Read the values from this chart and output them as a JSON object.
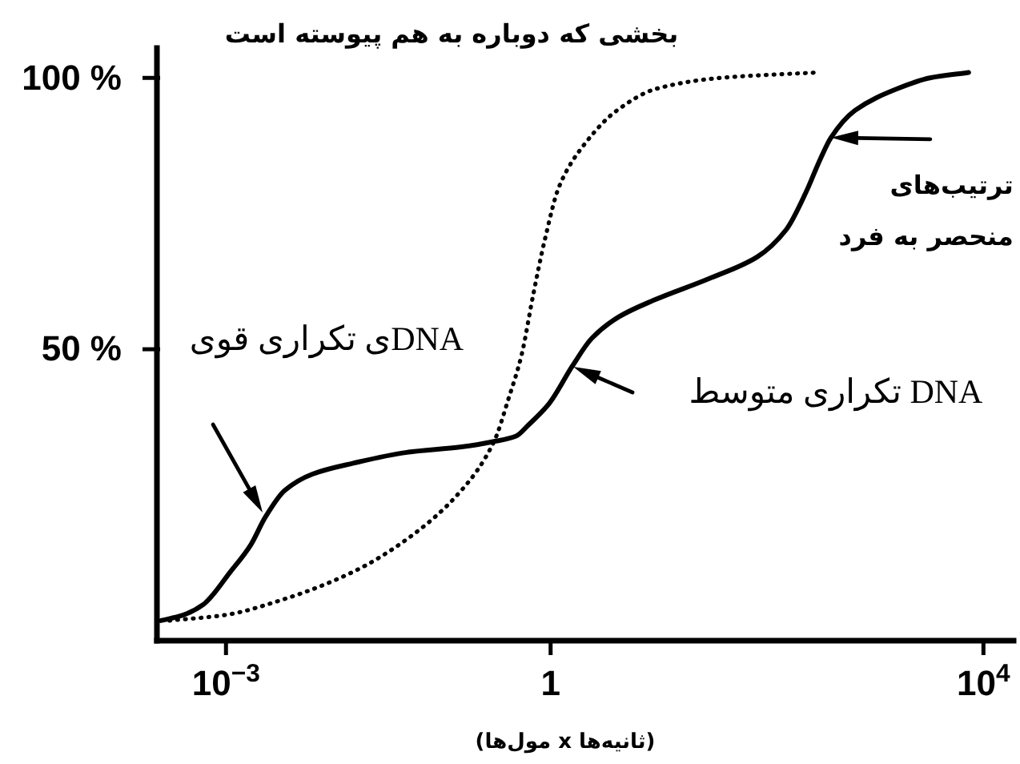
{
  "chart_data": {
    "type": "line",
    "title": "بخشی که دوباره به هم پیوسته است",
    "xlabel": "(ثانیه‌ها x مول‌ها)",
    "log": "x",
    "xlim": [
      0.00023,
      19000
    ],
    "ylim": [
      -3.7,
      105.5
    ],
    "xticks": [
      {
        "value": 0.001,
        "label": "10$^{−3}$"
      },
      1,
      {
        "value": 10000,
        "label": "10$^{4}$"
      }
    ],
    "yticks": [
      {
        "value": 50,
        "label": "50 %"
      },
      {
        "value": 100,
        "label": "100 %"
      }
    ],
    "series": [
      {
        "color": "#000000",
        "line_style": "solid",
        "x": [
          0.00025,
          0.0004,
          0.00062,
          0.0011,
          0.0017,
          0.0023,
          0.0035,
          0.0063,
          0.015,
          0.047,
          0.15,
          0.3,
          0.48,
          0.62,
          0.97,
          1.6,
          2.4,
          4.3,
          8.9,
          29,
          81,
          150,
          230,
          310,
          390,
          650,
          1600,
          3200,
          7300
        ],
        "values": [
          0,
          1,
          3,
          9,
          14,
          19,
          24,
          27,
          29,
          31,
          32,
          33,
          34,
          36,
          40,
          47,
          52,
          56,
          59,
          63,
          67,
          72,
          79,
          85,
          89,
          94,
          98,
          100,
          101
        ]
      },
      {
        "color": "#000000",
        "line_style": "dotted",
        "x": [
          0.0003,
          0.00096,
          0.0035,
          0.015,
          0.047,
          0.15,
          0.3,
          0.41,
          0.54,
          0.69,
          0.88,
          1.2,
          2.1,
          4.1,
          9.5,
          37,
          290
        ],
        "values": [
          0,
          1,
          4,
          9,
          15,
          24,
          33,
          41,
          49,
          60,
          70,
          80,
          88,
          94,
          98,
          100,
          101
        ]
      }
    ],
    "annotations": [
      "DNAی تکراری قوی",
      "DNA تکراری متوسط",
      {
        "text": "ترتیب‌های منحصر به فرد",
        "x": 390,
        "y": 89
      }
    ]
  }
}
